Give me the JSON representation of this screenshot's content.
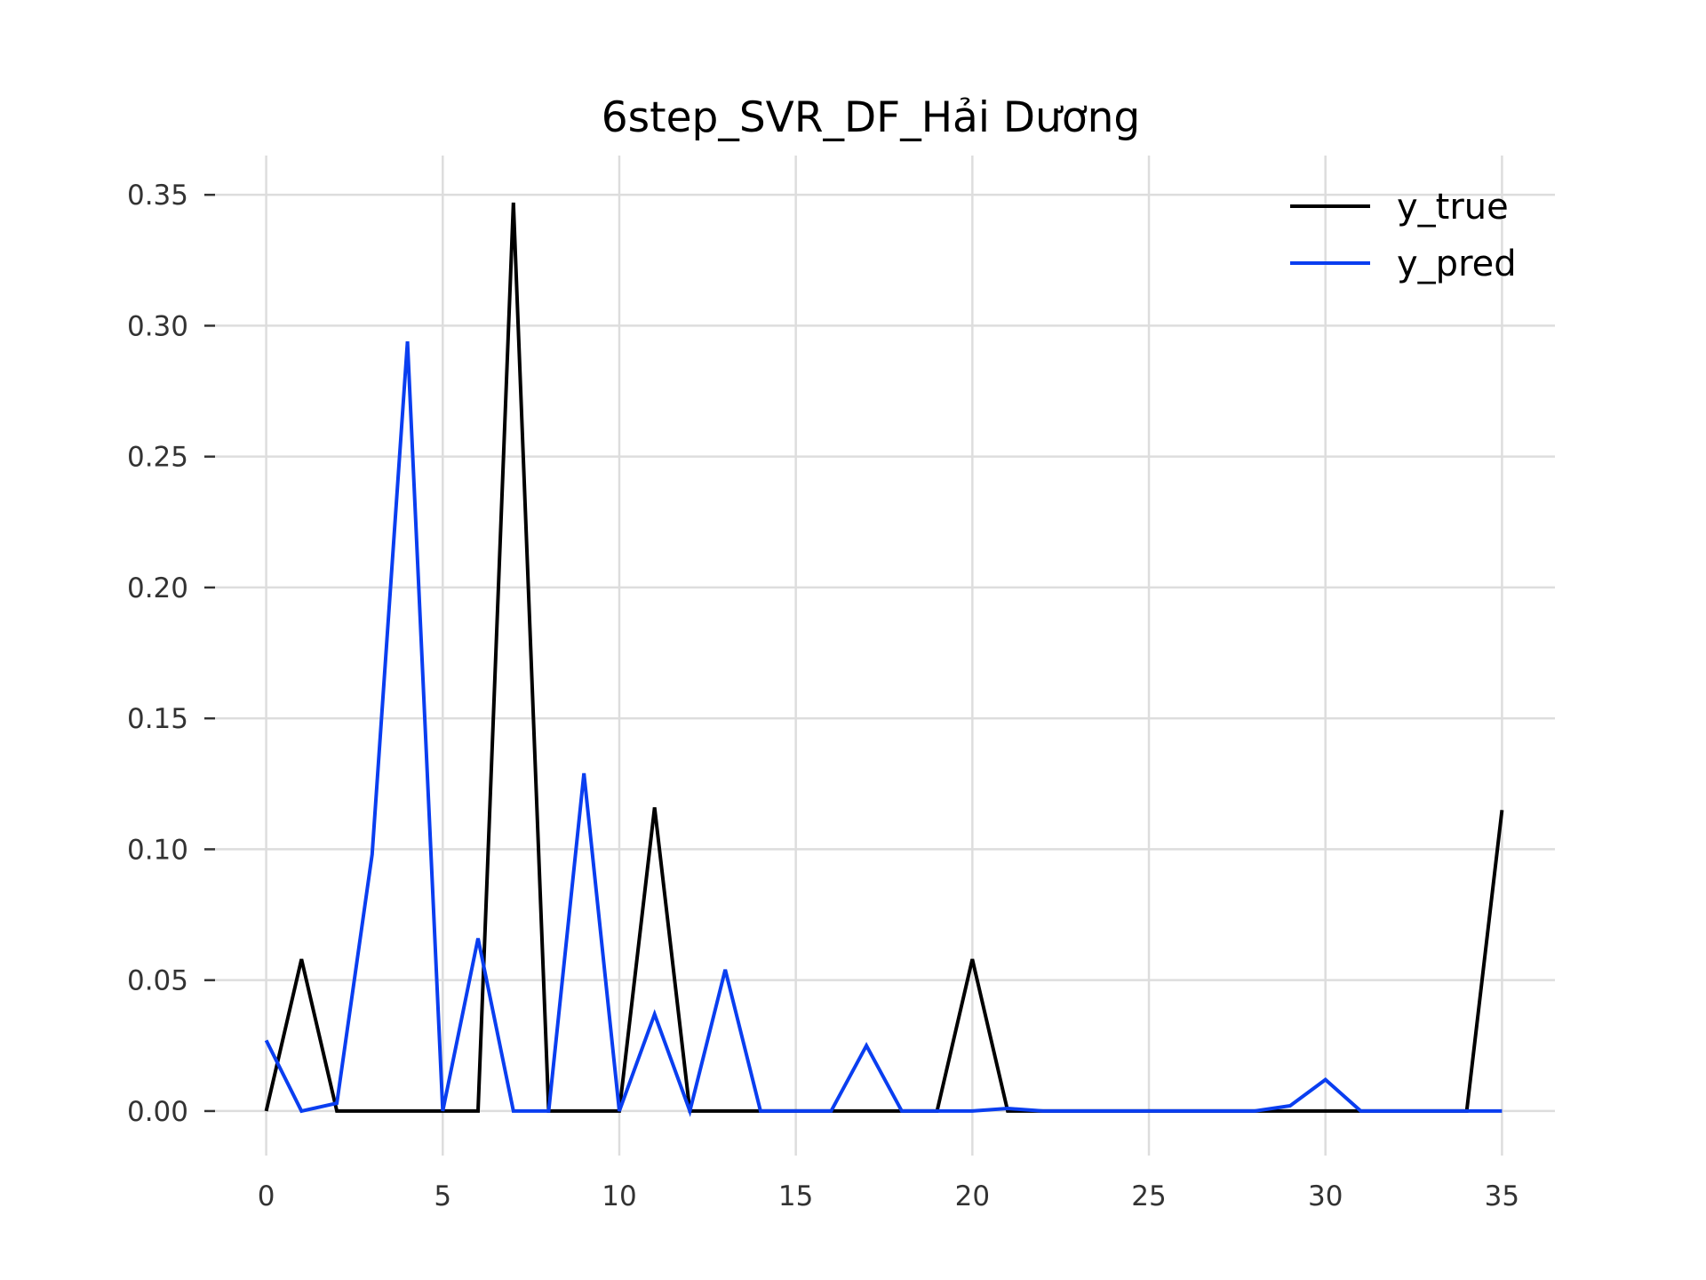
{
  "chart_data": {
    "type": "line",
    "title": "6step_SVR_DF_Hải Dương",
    "xlabel": "",
    "ylabel": "",
    "xlim": [
      -1.5,
      36.5
    ],
    "ylim": [
      -0.017,
      0.365
    ],
    "xticks": [
      0,
      5,
      10,
      15,
      20,
      25,
      30,
      35
    ],
    "xtick_labels": [
      "0",
      "5",
      "10",
      "15",
      "20",
      "25",
      "30",
      "35"
    ],
    "yticks": [
      0.0,
      0.05,
      0.1,
      0.15,
      0.2,
      0.25,
      0.3,
      0.35
    ],
    "ytick_labels": [
      "0.00",
      "0.05",
      "0.10",
      "0.15",
      "0.20",
      "0.25",
      "0.30",
      "0.35"
    ],
    "grid": true,
    "legend_position": "top-right",
    "x": [
      0,
      1,
      2,
      3,
      4,
      5,
      6,
      7,
      8,
      9,
      10,
      11,
      12,
      13,
      14,
      15,
      16,
      17,
      18,
      19,
      20,
      21,
      22,
      23,
      24,
      25,
      26,
      27,
      28,
      29,
      30,
      31,
      32,
      33,
      34,
      35
    ],
    "series": [
      {
        "name": "y_true",
        "color": "#000000",
        "values": [
          0,
          0.058,
          0,
          0,
          0,
          0,
          0,
          0.347,
          0,
          0,
          0,
          0.116,
          0,
          0,
          0,
          0,
          0,
          0,
          0,
          0,
          0.058,
          0,
          0,
          0,
          0,
          0,
          0,
          0,
          0,
          0,
          0,
          0,
          0,
          0,
          0,
          0.115
        ]
      },
      {
        "name": "y_pred",
        "color": "#0a3ef0",
        "values": [
          0.027,
          0,
          0.003,
          0.098,
          0.294,
          0,
          0.066,
          0,
          0,
          0.129,
          0,
          0.037,
          0,
          0.054,
          0,
          0,
          0,
          0.025,
          0,
          0,
          0,
          0.001,
          0,
          0,
          0,
          0,
          0,
          0,
          0,
          0.002,
          0.012,
          0,
          0,
          0,
          0,
          0
        ]
      }
    ]
  }
}
